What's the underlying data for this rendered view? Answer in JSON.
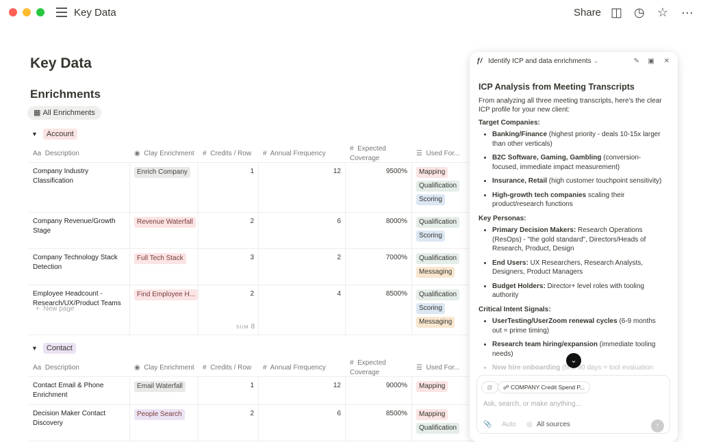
{
  "window": {
    "title": "Key Data",
    "share": "Share",
    "traffic": [
      "#ff5f57",
      "#febc2e",
      "#28c840"
    ]
  },
  "page": {
    "title": "Key Data",
    "section": "Enrichments",
    "view": "All Enrichments"
  },
  "columns": [
    "Description",
    "Clay Enrichment",
    "Credits / Row",
    "Annual Frequency",
    "Expected Coverage",
    "Used For..."
  ],
  "column_icons": [
    "text-icon",
    "select-icon",
    "number-icon",
    "number-icon",
    "number-icon",
    "list-icon"
  ],
  "tag_colors": {
    "red": "#fbe4e4",
    "gray": "#e9e9e7",
    "green": "#e4ede8",
    "blue": "#dbe7f3",
    "orange": "#f8e6cf",
    "purple": "#ebe3f3"
  },
  "groups": [
    {
      "name": "Account",
      "color": "red",
      "rows": [
        {
          "desc": "Company Industry Classification",
          "clay": "Enrich Company",
          "clay_color": "gray",
          "credits": "1",
          "freq": "12",
          "coverage": "9500%",
          "used": [
            "Mapping",
            "Qualification",
            "Scoring"
          ]
        },
        {
          "desc": "Company Revenue/Growth Stage",
          "clay": "Revenue Waterfall",
          "clay_color": "red",
          "credits": "2",
          "freq": "6",
          "coverage": "8000%",
          "used": [
            "Qualification",
            "Scoring"
          ]
        },
        {
          "desc": "Company Technology Stack Detection",
          "clay": "Full Tech Stack",
          "clay_color": "red",
          "credits": "3",
          "freq": "2",
          "coverage": "7000%",
          "used": [
            "Qualification",
            "Messaging"
          ]
        },
        {
          "desc": "Employee Headcount - Research/UX/Product Teams",
          "clay": "Find Employee H...",
          "clay_color": "red",
          "credits": "2",
          "freq": "4",
          "coverage": "8500%",
          "used": [
            "Qualification",
            "Scoring",
            "Messaging"
          ]
        }
      ],
      "new_page": "New page",
      "sum_label": "SUM",
      "sum": "8"
    },
    {
      "name": "Contact",
      "color": "purple",
      "rows": [
        {
          "desc": "Contact Email & Phone Enrichment",
          "clay": "Email Waterfall",
          "clay_color": "gray",
          "credits": "1",
          "freq": "12",
          "coverage": "9000%",
          "used": [
            "Mapping"
          ]
        },
        {
          "desc": "Decision Maker Contact Discovery",
          "clay": "People Search",
          "clay_color": "purple",
          "credits": "2",
          "freq": "6",
          "coverage": "8500%",
          "used": [
            "Mapping",
            "Qualification"
          ]
        }
      ]
    }
  ],
  "used_colors": {
    "Mapping": "red",
    "Qualification": "green",
    "Scoring": "blue",
    "Messaging": "orange"
  },
  "panel": {
    "title": "Identify ICP and data enrichments",
    "heading": "ICP Analysis from Meeting Transcripts",
    "intro": "From analyzing all three meeting transcripts, here's the clear ICP profile for your new client:",
    "sections": [
      {
        "title": "Target Companies:",
        "items": [
          {
            "b": "Banking/Finance",
            "t": " (highest priority - deals 10-15x larger than other verticals)"
          },
          {
            "b": "B2C Software, Gaming, Gambling",
            "t": " (conversion-focused, immediate impact measurement)"
          },
          {
            "b": "Insurance, Retail",
            "t": " (high customer touchpoint sensitivity)"
          },
          {
            "b": "High-growth tech companies",
            "t": " scaling their product/research functions"
          }
        ]
      },
      {
        "title": "Key Personas:",
        "items": [
          {
            "b": "Primary Decision Makers:",
            "t": " Research Operations (ResOps) - \"the gold standard\", Directors/Heads of Research, Product, Design"
          },
          {
            "b": "End Users:",
            "t": " UX Researchers, Research Analysts, Designers, Product Managers"
          },
          {
            "b": "Budget Holders:",
            "t": " Director+ level roles with tooling authority"
          }
        ]
      },
      {
        "title": "Critical Intent Signals:",
        "items": [
          {
            "b": "UserTesting/UserZoom renewal cycles",
            "t": " (6-9 months out = prime timing)"
          },
          {
            "b": "Research team hiring/expansion",
            "t": " (immediate tooling needs)"
          },
          {
            "b": "New hire onboarding",
            "t": " (first 90 days = tool evaluation",
            "fade": true
          }
        ]
      }
    ],
    "context_chip": "COMPANY Credit Spend P...",
    "placeholder": "Ask, search, or make anything...",
    "mode": "Auto",
    "sources": "All sources"
  }
}
